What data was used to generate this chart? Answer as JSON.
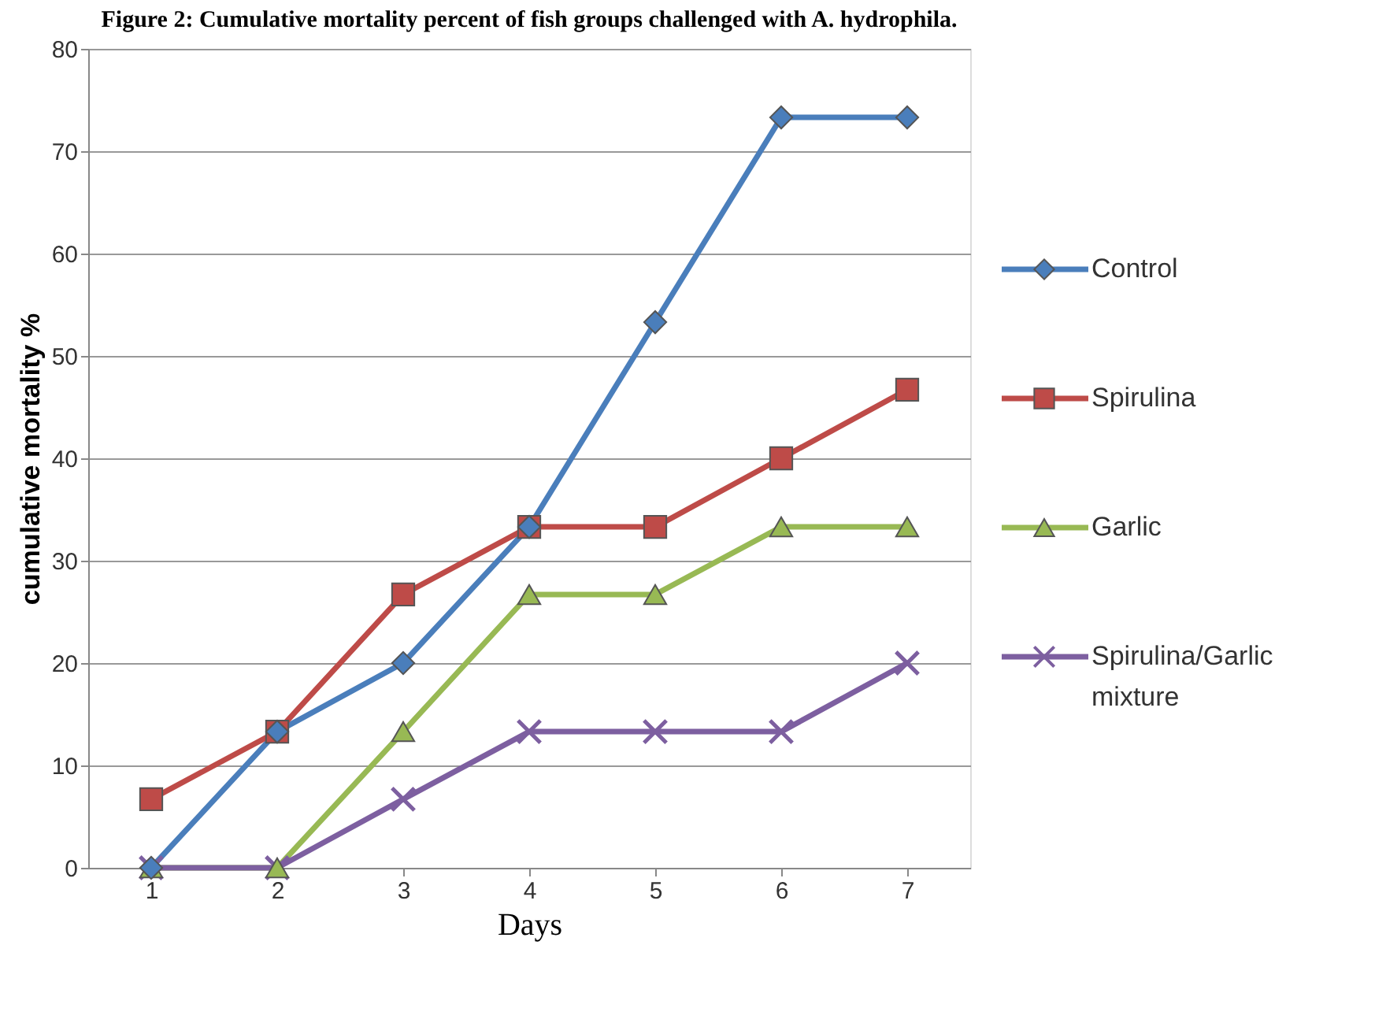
{
  "chart_data": {
    "type": "line",
    "title": "Figure 2: Cumulative mortality percent of fish groups challenged with A. hydrophila.",
    "xlabel": "Days",
    "ylabel": "cumulative mortality %",
    "categories": [
      "1",
      "2",
      "3",
      "4",
      "5",
      "6",
      "7"
    ],
    "ylim": [
      0,
      80
    ],
    "yticks": [
      0,
      10,
      20,
      30,
      40,
      50,
      60,
      70,
      80
    ],
    "grid": "y",
    "legend": "right",
    "line_style": "solid",
    "series": [
      {
        "name": "Control",
        "color": "#4a7ebb",
        "marker": "diamond",
        "values": [
          0,
          13.3,
          20,
          33.3,
          53.3,
          73.3,
          73.3
        ]
      },
      {
        "name": "Spirulina",
        "color": "#be4b48",
        "marker": "square",
        "values": [
          6.7,
          13.3,
          26.7,
          33.3,
          33.3,
          40,
          46.7
        ]
      },
      {
        "name": "Garlic",
        "color": "#98b954",
        "marker": "triangle",
        "values": [
          0,
          0,
          13.3,
          26.7,
          26.7,
          33.3,
          33.3
        ]
      },
      {
        "name": "Spirulina/Garlic mixture",
        "color": "#7d5fa0",
        "marker": "cross",
        "values": [
          0,
          0,
          6.7,
          13.3,
          13.3,
          13.3,
          20
        ]
      }
    ]
  }
}
